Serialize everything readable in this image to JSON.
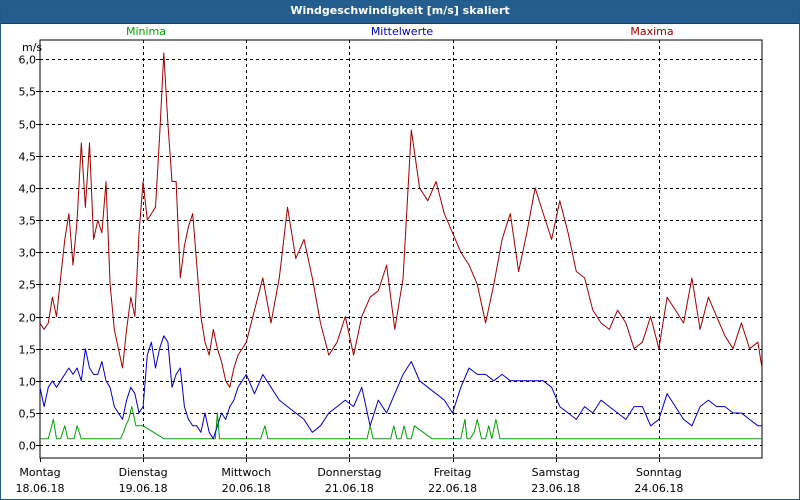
{
  "window_title": "Windgeschwindigkeit [m/s] skaliert",
  "chart_data": {
    "type": "line",
    "title": "Windgeschwindigkeit [m/s] skaliert",
    "ylabel": "m/s",
    "xlabel": "",
    "ylim": [
      -0.2,
      6.3
    ],
    "xlim": [
      0,
      7
    ],
    "grid": true,
    "legend_placement": "top",
    "y_ticks": [
      "0,0",
      "0,5",
      "1,0",
      "1,5",
      "2,0",
      "2,5",
      "3,0",
      "3,5",
      "4,0",
      "4,5",
      "5,0",
      "5,5",
      "6,0"
    ],
    "x_ticks": [
      {
        "day": "Montag",
        "date": "18.06.18"
      },
      {
        "day": "Dienstag",
        "date": "19.06.18"
      },
      {
        "day": "Mittwoch",
        "date": "20.06.18"
      },
      {
        "day": "Donnerstag",
        "date": "21.06.18"
      },
      {
        "day": "Freitag",
        "date": "22.06.18"
      },
      {
        "day": "Samstag",
        "date": "23.06.18"
      },
      {
        "day": "Sonntag",
        "date": "24.06.18"
      }
    ],
    "series": [
      {
        "name": "Minima",
        "color": "#00a000",
        "x": [
          0.0,
          0.08,
          0.13,
          0.16,
          0.2,
          0.24,
          0.27,
          0.33,
          0.36,
          0.4,
          0.47,
          0.5,
          0.53,
          0.56,
          0.65,
          0.72,
          0.78,
          0.81,
          0.83,
          0.86,
          0.89,
          0.93,
          1.0,
          1.2,
          1.7,
          1.72,
          1.74,
          1.85,
          2.14,
          2.18,
          2.21,
          2.6,
          3.17,
          3.2,
          3.23,
          3.27,
          3.4,
          3.43,
          3.46,
          3.5,
          3.53,
          3.56,
          3.6,
          3.63,
          3.8,
          4.05,
          4.08,
          4.12,
          4.14,
          4.17,
          4.21,
          4.24,
          4.28,
          4.32,
          4.35,
          4.38,
          4.42,
          4.46,
          4.5,
          4.8,
          5.2,
          5.6,
          6.0,
          6.4,
          6.8,
          7.0
        ],
        "values": [
          0.1,
          0.1,
          0.4,
          0.1,
          0.1,
          0.3,
          0.1,
          0.1,
          0.3,
          0.1,
          0.1,
          0.1,
          0.1,
          0.1,
          0.1,
          0.1,
          0.1,
          0.2,
          0.3,
          0.4,
          0.6,
          0.3,
          0.3,
          0.1,
          0.1,
          0.5,
          0.1,
          0.1,
          0.1,
          0.3,
          0.1,
          0.1,
          0.1,
          0.3,
          0.1,
          0.1,
          0.1,
          0.3,
          0.1,
          0.1,
          0.3,
          0.1,
          0.1,
          0.3,
          0.1,
          0.1,
          0.1,
          0.4,
          0.1,
          0.1,
          0.2,
          0.4,
          0.1,
          0.1,
          0.3,
          0.1,
          0.4,
          0.1,
          0.1,
          0.1,
          0.1,
          0.1,
          0.1,
          0.1,
          0.1,
          0.1
        ]
      },
      {
        "name": "Mittelwerte",
        "color": "#0000c0",
        "x": [
          0.0,
          0.04,
          0.08,
          0.12,
          0.16,
          0.2,
          0.24,
          0.28,
          0.32,
          0.36,
          0.4,
          0.44,
          0.48,
          0.52,
          0.56,
          0.6,
          0.64,
          0.68,
          0.72,
          0.76,
          0.8,
          0.84,
          0.88,
          0.92,
          0.96,
          1.0,
          1.04,
          1.08,
          1.12,
          1.16,
          1.2,
          1.24,
          1.28,
          1.32,
          1.36,
          1.4,
          1.44,
          1.48,
          1.52,
          1.56,
          1.6,
          1.64,
          1.68,
          1.72,
          1.76,
          1.8,
          1.84,
          1.88,
          1.92,
          1.96,
          2.0,
          2.08,
          2.16,
          2.24,
          2.32,
          2.4,
          2.48,
          2.56,
          2.64,
          2.72,
          2.8,
          2.88,
          2.96,
          3.04,
          3.12,
          3.2,
          3.28,
          3.36,
          3.44,
          3.52,
          3.6,
          3.68,
          3.76,
          3.84,
          3.92,
          4.0,
          4.08,
          4.16,
          4.24,
          4.32,
          4.4,
          4.48,
          4.56,
          4.64,
          4.72,
          4.8,
          4.88,
          4.96,
          5.04,
          5.12,
          5.2,
          5.28,
          5.36,
          5.44,
          5.52,
          5.6,
          5.68,
          5.76,
          5.84,
          5.92,
          6.0,
          6.08,
          6.16,
          6.24,
          6.32,
          6.4,
          6.48,
          6.56,
          6.64,
          6.72,
          6.8,
          6.88,
          6.96,
          7.0
        ],
        "values": [
          0.9,
          0.6,
          0.9,
          1.0,
          0.9,
          1.0,
          1.1,
          1.2,
          1.1,
          1.2,
          1.0,
          1.5,
          1.2,
          1.1,
          1.1,
          1.3,
          1.0,
          0.9,
          0.6,
          0.5,
          0.4,
          0.7,
          0.9,
          0.8,
          0.5,
          0.6,
          1.4,
          1.6,
          1.2,
          1.5,
          1.7,
          1.6,
          0.9,
          1.1,
          1.2,
          0.6,
          0.4,
          0.3,
          0.3,
          0.2,
          0.5,
          0.2,
          0.1,
          0.3,
          0.5,
          0.4,
          0.6,
          0.7,
          0.9,
          1.0,
          1.1,
          0.8,
          1.1,
          0.9,
          0.7,
          0.6,
          0.5,
          0.4,
          0.2,
          0.3,
          0.5,
          0.6,
          0.7,
          0.6,
          0.9,
          0.3,
          0.7,
          0.5,
          0.8,
          1.1,
          1.3,
          1.0,
          0.9,
          0.8,
          0.7,
          0.5,
          0.9,
          1.2,
          1.1,
          1.1,
          1.0,
          1.1,
          1.0,
          1.0,
          1.0,
          1.0,
          1.0,
          0.9,
          0.6,
          0.5,
          0.4,
          0.6,
          0.5,
          0.7,
          0.6,
          0.5,
          0.4,
          0.6,
          0.6,
          0.3,
          0.4,
          0.8,
          0.6,
          0.4,
          0.3,
          0.6,
          0.7,
          0.6,
          0.6,
          0.5,
          0.5,
          0.4,
          0.3,
          0.3
        ]
      },
      {
        "name": "Maxima",
        "color": "#a00000",
        "x": [
          0.0,
          0.04,
          0.08,
          0.12,
          0.16,
          0.2,
          0.24,
          0.28,
          0.32,
          0.36,
          0.4,
          0.44,
          0.48,
          0.52,
          0.56,
          0.6,
          0.64,
          0.68,
          0.72,
          0.76,
          0.8,
          0.84,
          0.88,
          0.92,
          0.96,
          1.0,
          1.04,
          1.08,
          1.12,
          1.16,
          1.2,
          1.24,
          1.28,
          1.32,
          1.36,
          1.4,
          1.44,
          1.48,
          1.52,
          1.56,
          1.6,
          1.64,
          1.68,
          1.72,
          1.76,
          1.8,
          1.84,
          1.88,
          1.92,
          1.96,
          2.0,
          2.08,
          2.16,
          2.24,
          2.32,
          2.4,
          2.48,
          2.56,
          2.64,
          2.72,
          2.8,
          2.88,
          2.96,
          3.04,
          3.12,
          3.2,
          3.28,
          3.36,
          3.44,
          3.52,
          3.6,
          3.68,
          3.76,
          3.84,
          3.92,
          4.0,
          4.08,
          4.16,
          4.24,
          4.32,
          4.4,
          4.48,
          4.56,
          4.64,
          4.72,
          4.8,
          4.88,
          4.96,
          5.04,
          5.12,
          5.2,
          5.28,
          5.36,
          5.44,
          5.52,
          5.6,
          5.68,
          5.76,
          5.84,
          5.92,
          6.0,
          6.08,
          6.16,
          6.24,
          6.32,
          6.4,
          6.48,
          6.56,
          6.64,
          6.72,
          6.8,
          6.88,
          6.96,
          7.0
        ],
        "values": [
          1.9,
          1.8,
          1.9,
          2.3,
          2.0,
          2.6,
          3.2,
          3.6,
          2.8,
          3.5,
          4.7,
          3.7,
          4.7,
          3.2,
          3.5,
          3.3,
          4.1,
          2.5,
          1.8,
          1.5,
          1.2,
          1.8,
          2.3,
          2.0,
          3.3,
          4.1,
          3.5,
          3.6,
          3.7,
          4.8,
          6.1,
          5.0,
          4.1,
          4.1,
          2.6,
          3.1,
          3.4,
          3.6,
          2.8,
          2.0,
          1.6,
          1.4,
          1.8,
          1.5,
          1.3,
          1.0,
          0.9,
          1.2,
          1.4,
          1.5,
          1.6,
          2.1,
          2.6,
          1.9,
          2.6,
          3.7,
          2.9,
          3.2,
          2.6,
          1.9,
          1.4,
          1.6,
          2.0,
          1.4,
          2.0,
          2.3,
          2.4,
          2.8,
          1.8,
          2.6,
          4.9,
          4.0,
          3.8,
          4.1,
          3.6,
          3.3,
          3.0,
          2.8,
          2.5,
          1.9,
          2.5,
          3.2,
          3.6,
          2.7,
          3.3,
          4.0,
          3.6,
          3.2,
          3.8,
          3.3,
          2.7,
          2.6,
          2.1,
          1.9,
          1.8,
          2.1,
          1.9,
          1.5,
          1.6,
          2.0,
          1.5,
          2.3,
          2.1,
          1.9,
          2.6,
          1.8,
          2.3,
          2.0,
          1.7,
          1.5,
          1.9,
          1.5,
          1.6,
          1.2
        ],
        "note_series_spans": ""
      }
    ]
  }
}
